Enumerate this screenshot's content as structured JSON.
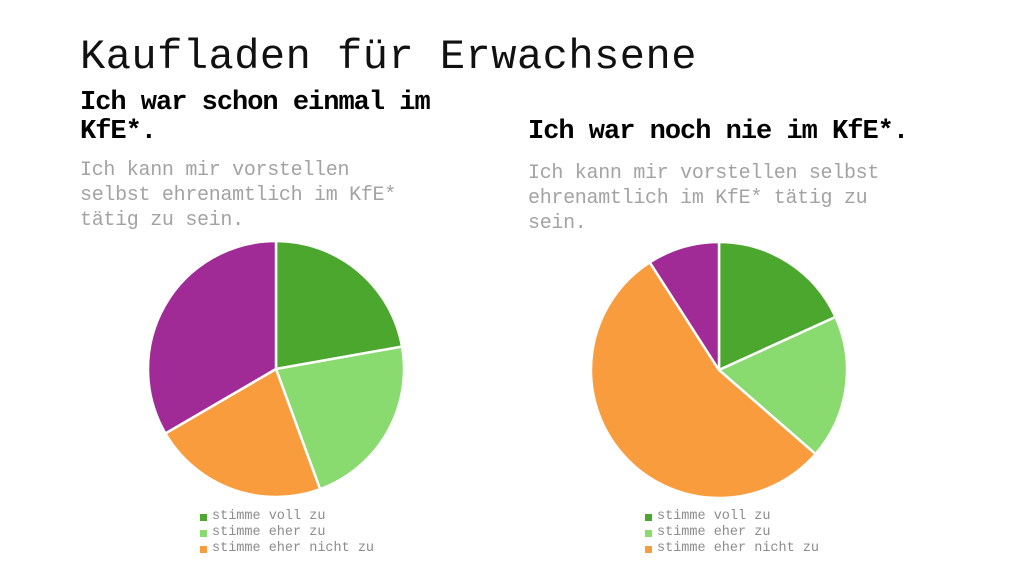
{
  "slide": {
    "title": "Kaufladen für Erwachsene",
    "background_color": "#FFFFFF"
  },
  "chart_data": [
    {
      "type": "pie",
      "title": "Ich war schon einmal im\nKfE*.",
      "subtitle": "Ich kann mir vorstellen\nselbst ehrenamtlich im KfE*\ntätig zu sein.",
      "start_angle_deg": 0,
      "direction": "clockwise",
      "legend_position": "bottom",
      "segments": [
        {
          "label": "stimme voll zu",
          "percent": 22.2,
          "color": "#4BA72E",
          "in_legend": true
        },
        {
          "label": "stimme eher zu",
          "percent": 22.2,
          "color": "#89DB70",
          "in_legend": true
        },
        {
          "label": "stimme eher nicht zu",
          "percent": 22.2,
          "color": "#F99C3D",
          "in_legend": true
        },
        {
          "label": "",
          "percent": 33.4,
          "color": "#A02B97",
          "in_legend": false
        }
      ]
    },
    {
      "type": "pie",
      "title": "Ich war noch nie im KfE*.",
      "subtitle": "Ich kann mir vorstellen selbst\nehrenamtlich im KfE* tätig zu\nsein.",
      "start_angle_deg": 0,
      "direction": "clockwise",
      "legend_position": "bottom",
      "segments": [
        {
          "label": "stimme voll zu",
          "percent": 18.2,
          "color": "#4BA72E",
          "in_legend": true
        },
        {
          "label": "stimme eher zu",
          "percent": 18.2,
          "color": "#89DB70",
          "in_legend": true
        },
        {
          "label": "stimme eher nicht zu",
          "percent": 54.5,
          "color": "#F99C3D",
          "in_legend": true
        },
        {
          "label": "",
          "percent": 9.1,
          "color": "#A02B97",
          "in_legend": false
        }
      ]
    }
  ],
  "text_colors": {
    "title": "#111111",
    "question": "#000000",
    "statement": "#A3A3A3",
    "legend": "#8C8C8C"
  }
}
